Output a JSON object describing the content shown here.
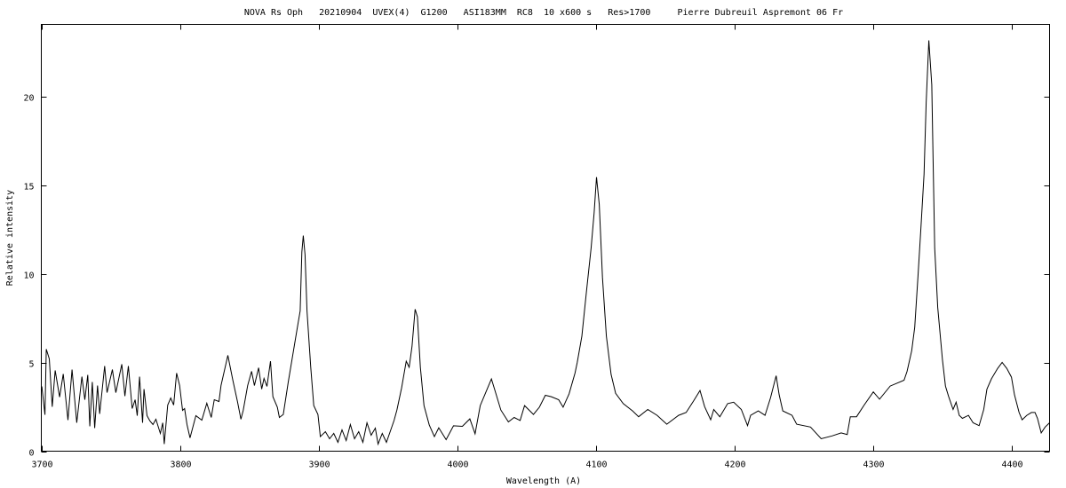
{
  "chart_data": {
    "type": "line",
    "title": "NOVA Rs Oph   20210904  UVEX(4)  G1200   ASI183MM  RC8  10 x600 s   Res>1700     Pierre Dubreuil Aspremont 06 Fr",
    "xlabel": "Wavelength (A)",
    "ylabel": "Relative intensity",
    "xlim": [
      3700,
      4427.5
    ],
    "ylim": [
      0,
      24.05
    ],
    "x_ticks": [
      3700,
      3800,
      3900,
      4000,
      4100,
      4200,
      4300,
      4400
    ],
    "y_ticks": [
      0,
      5,
      10,
      15,
      20
    ],
    "grid": false,
    "line_color": "#000000",
    "series": [
      {
        "points": [
          [
            3700.4,
            3.65
          ],
          [
            3702.6,
            2.05
          ],
          [
            3703.6,
            5.75
          ],
          [
            3705.8,
            5.2
          ],
          [
            3707.9,
            2.5
          ],
          [
            3710.0,
            4.55
          ],
          [
            3713.2,
            3.05
          ],
          [
            3715.8,
            4.35
          ],
          [
            3719.2,
            1.75
          ],
          [
            3722.2,
            4.6
          ],
          [
            3725.6,
            1.6
          ],
          [
            3729.3,
            4.2
          ],
          [
            3731.4,
            2.9
          ],
          [
            3733.5,
            4.3
          ],
          [
            3735.0,
            1.4
          ],
          [
            3736.8,
            3.9
          ],
          [
            3738.5,
            1.3
          ],
          [
            3740.6,
            3.7
          ],
          [
            3742.1,
            2.1
          ],
          [
            3745.7,
            4.8
          ],
          [
            3747.4,
            3.3
          ],
          [
            3751.3,
            4.6
          ],
          [
            3753.8,
            3.3
          ],
          [
            3758.1,
            4.9
          ],
          [
            3760.3,
            3.1
          ],
          [
            3762.8,
            4.8
          ],
          [
            3765.6,
            2.4
          ],
          [
            3767.7,
            2.9
          ],
          [
            3769.2,
            2.0
          ],
          [
            3770.9,
            4.2
          ],
          [
            3773.1,
            1.6
          ],
          [
            3774.1,
            3.5
          ],
          [
            3776.3,
            2.0
          ],
          [
            3778.4,
            1.7
          ],
          [
            3780.6,
            1.5
          ],
          [
            3782.7,
            1.8
          ],
          [
            3785.9,
            1.0
          ],
          [
            3787.6,
            1.6
          ],
          [
            3788.7,
            0.4
          ],
          [
            3791.2,
            2.6
          ],
          [
            3793.4,
            3.0
          ],
          [
            3795.5,
            2.6
          ],
          [
            3797.6,
            4.4
          ],
          [
            3799.8,
            3.7
          ],
          [
            3801.9,
            2.3
          ],
          [
            3803.4,
            2.4
          ],
          [
            3805.1,
            1.5
          ],
          [
            3807.3,
            0.75
          ],
          [
            3811.5,
            2.0
          ],
          [
            3815.8,
            1.75
          ],
          [
            3819.4,
            2.7
          ],
          [
            3822.6,
            1.9
          ],
          [
            3824.8,
            2.9
          ],
          [
            3828.2,
            2.8
          ],
          [
            3829.7,
            3.7
          ],
          [
            3834.6,
            5.4
          ],
          [
            3838.2,
            4.0
          ],
          [
            3841.5,
            2.8
          ],
          [
            3844.0,
            1.8
          ],
          [
            3845.7,
            2.3
          ],
          [
            3848.9,
            3.7
          ],
          [
            3851.7,
            4.5
          ],
          [
            3853.8,
            3.7
          ],
          [
            3856.8,
            4.7
          ],
          [
            3859.0,
            3.5
          ],
          [
            3860.7,
            4.1
          ],
          [
            3862.8,
            3.65
          ],
          [
            3865.4,
            5.07
          ],
          [
            3867.1,
            3.07
          ],
          [
            3870.3,
            2.48
          ],
          [
            3871.8,
            1.9
          ],
          [
            3874.6,
            2.07
          ],
          [
            3878.2,
            3.9
          ],
          [
            3882.1,
            5.73
          ],
          [
            3885.3,
            7.23
          ],
          [
            3886.8,
            7.9
          ],
          [
            3888.0,
            11.23
          ],
          [
            3889.0,
            12.15
          ],
          [
            3890.3,
            11.07
          ],
          [
            3891.7,
            7.9
          ],
          [
            3894.4,
            4.73
          ],
          [
            3896.6,
            2.57
          ],
          [
            3899.6,
            2.07
          ],
          [
            3901.3,
            0.82
          ],
          [
            3905,
            1.1
          ],
          [
            3908,
            0.7
          ],
          [
            3911,
            1.0
          ],
          [
            3914,
            0.5
          ],
          [
            3917,
            1.2
          ],
          [
            3920,
            0.6
          ],
          [
            3923,
            1.5
          ],
          [
            3926,
            0.7
          ],
          [
            3929,
            1.1
          ],
          [
            3932,
            0.5
          ],
          [
            3935,
            1.6
          ],
          [
            3938,
            0.9
          ],
          [
            3941,
            1.3
          ],
          [
            3943,
            0.4
          ],
          [
            3946,
            1.0
          ],
          [
            3949,
            0.5
          ],
          [
            3952.6,
            1.3
          ],
          [
            3954.5,
            1.73
          ],
          [
            3956.6,
            2.32
          ],
          [
            3960.0,
            3.57
          ],
          [
            3963.3,
            5.07
          ],
          [
            3965.4,
            4.73
          ],
          [
            3967.5,
            5.9
          ],
          [
            3969.7,
            8.0
          ],
          [
            3971.4,
            7.57
          ],
          [
            3973.5,
            4.73
          ],
          [
            3976.1,
            2.57
          ],
          [
            3979.9,
            1.48
          ],
          [
            3983.6,
            0.82
          ],
          [
            3986.8,
            1.32
          ],
          [
            3992.1,
            0.65
          ],
          [
            3997.4,
            1.43
          ],
          [
            4003.8,
            1.4
          ],
          [
            4009.2,
            1.82
          ],
          [
            4013.0,
            0.98
          ],
          [
            4016.7,
            2.57
          ],
          [
            4020.5,
            3.27
          ],
          [
            4024.8,
            4.07
          ],
          [
            4027.4,
            3.4
          ],
          [
            4031.6,
            2.32
          ],
          [
            4037.0,
            1.65
          ],
          [
            4041.2,
            1.9
          ],
          [
            4045.5,
            1.73
          ],
          [
            4048.7,
            2.57
          ],
          [
            4055.1,
            2.07
          ],
          [
            4059.4,
            2.48
          ],
          [
            4063.7,
            3.15
          ],
          [
            4068.0,
            3.07
          ],
          [
            4073.3,
            2.9
          ],
          [
            4076.5,
            2.48
          ],
          [
            4080.8,
            3.23
          ],
          [
            4085.1,
            4.4
          ],
          [
            4086.7,
            5.0
          ],
          [
            4090.0,
            6.48
          ],
          [
            4093.3,
            8.96
          ],
          [
            4096.7,
            11.44
          ],
          [
            4098.9,
            13.42
          ],
          [
            4100.6,
            15.44
          ],
          [
            4102.6,
            13.9
          ],
          [
            4104.9,
            9.79
          ],
          [
            4107.7,
            6.48
          ],
          [
            4111.1,
            4.33
          ],
          [
            4114.4,
            3.26
          ],
          [
            4119.9,
            2.68
          ],
          [
            4126.6,
            2.27
          ],
          [
            4131.0,
            1.94
          ],
          [
            4137.6,
            2.35
          ],
          [
            4144.3,
            2.02
          ],
          [
            4151.3,
            1.52
          ],
          [
            4159.8,
            2.02
          ],
          [
            4165.3,
            2.18
          ],
          [
            4170.8,
            2.85
          ],
          [
            4175.3,
            3.42
          ],
          [
            4178.6,
            2.51
          ],
          [
            4183.0,
            1.77
          ],
          [
            4185.2,
            2.35
          ],
          [
            4189.6,
            1.94
          ],
          [
            4195.2,
            2.68
          ],
          [
            4199.6,
            2.76
          ],
          [
            4205.1,
            2.35
          ],
          [
            4209.6,
            1.44
          ],
          [
            4211.8,
            2.02
          ],
          [
            4217.3,
            2.27
          ],
          [
            4222.2,
            2.02
          ],
          [
            4226.2,
            3.01
          ],
          [
            4230.2,
            4.25
          ],
          [
            4232.4,
            3.18
          ],
          [
            4235.0,
            2.27
          ],
          [
            4241.7,
            2.02
          ],
          [
            4245.0,
            1.52
          ],
          [
            4255.0,
            1.36
          ],
          [
            4262.7,
            0.7
          ],
          [
            4270.5,
            0.86
          ],
          [
            4277.1,
            1.03
          ],
          [
            4281.5,
            0.94
          ],
          [
            4283.7,
            1.94
          ],
          [
            4288.2,
            1.94
          ],
          [
            4293.7,
            2.6
          ],
          [
            4300.3,
            3.34
          ],
          [
            4304.8,
            2.93
          ],
          [
            4312.5,
            3.67
          ],
          [
            4322.5,
            4.0
          ],
          [
            4324.7,
            4.5
          ],
          [
            4328.0,
            5.66
          ],
          [
            4330.2,
            6.98
          ],
          [
            4332.5,
            9.79
          ],
          [
            4334.7,
            12.6
          ],
          [
            4336.9,
            15.6
          ],
          [
            4338.5,
            19.65
          ],
          [
            4340.4,
            23.15
          ],
          [
            4342.5,
            20.65
          ],
          [
            4343.5,
            16.4
          ],
          [
            4344.6,
            11.44
          ],
          [
            4346.8,
            8.1
          ],
          [
            4350.2,
            5.16
          ],
          [
            4352.4,
            3.67
          ],
          [
            4354.6,
            3.09
          ],
          [
            4357.9,
            2.35
          ],
          [
            4360.1,
            2.76
          ],
          [
            4362.3,
            2.02
          ],
          [
            4364.6,
            1.85
          ],
          [
            4369.0,
            2.02
          ],
          [
            4372.3,
            1.6
          ],
          [
            4376.7,
            1.44
          ],
          [
            4380.0,
            2.35
          ],
          [
            4382.3,
            3.5
          ],
          [
            4385.6,
            4.08
          ],
          [
            4390.0,
            4.66
          ],
          [
            4393.3,
            5.0
          ],
          [
            4396.7,
            4.66
          ],
          [
            4400.0,
            4.17
          ],
          [
            4402.2,
            3.18
          ],
          [
            4405.5,
            2.18
          ],
          [
            4407.7,
            1.77
          ],
          [
            4411.1,
            2.02
          ],
          [
            4414.4,
            2.18
          ],
          [
            4417.0,
            2.18
          ],
          [
            4418.8,
            1.85
          ],
          [
            4421.5,
            1.03
          ],
          [
            4424.3,
            1.36
          ],
          [
            4427.5,
            1.6
          ]
        ]
      }
    ]
  }
}
